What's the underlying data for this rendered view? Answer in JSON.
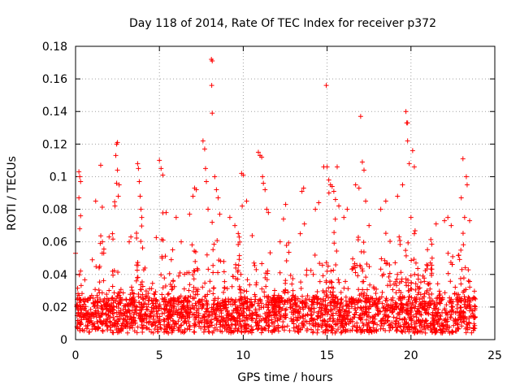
{
  "chart_data": {
    "type": "scatter",
    "title": "Day 118 of 2014, Rate Of TEC Index for receiver p372",
    "xlabel": "GPS time / hours",
    "ylabel": "ROTI / TECUs",
    "xlim": [
      0,
      25
    ],
    "ylim": [
      0,
      0.18
    ],
    "xticks": [
      0,
      5,
      10,
      15,
      20,
      25
    ],
    "xtick_labels": [
      "0",
      "5",
      "10",
      "15",
      "20",
      "25"
    ],
    "yticks": [
      0,
      0.02,
      0.04,
      0.06,
      0.08,
      0.1,
      0.12,
      0.14,
      0.16,
      0.18
    ],
    "ytick_labels": [
      "0",
      "0.02",
      "0.04",
      "0.06",
      "0.08",
      "0.1",
      "0.12",
      "0.14",
      "0.16",
      "0.18"
    ],
    "grid": true,
    "marker": "+",
    "color": "#ff0000",
    "series": [
      {
        "name": "ROTI",
        "points": [
          [
            0.0,
            0.053
          ],
          [
            0.2,
            0.103
          ],
          [
            0.25,
            0.1
          ],
          [
            0.3,
            0.097
          ],
          [
            0.2,
            0.087
          ],
          [
            0.3,
            0.076
          ],
          [
            0.25,
            0.068
          ],
          [
            1.0,
            0.049
          ],
          [
            1.2,
            0.085
          ],
          [
            1.5,
            0.107
          ],
          [
            1.6,
            0.06
          ],
          [
            2.0,
            0.063
          ],
          [
            2.2,
            0.065
          ],
          [
            2.35,
            0.082
          ],
          [
            2.45,
            0.096
          ],
          [
            2.5,
            0.104
          ],
          [
            2.4,
            0.113
          ],
          [
            2.45,
            0.12
          ],
          [
            2.5,
            0.121
          ],
          [
            2.6,
            0.095
          ],
          [
            2.55,
            0.088
          ],
          [
            3.2,
            0.06
          ],
          [
            3.3,
            0.063
          ],
          [
            3.7,
            0.108
          ],
          [
            3.75,
            0.105
          ],
          [
            3.8,
            0.097
          ],
          [
            3.85,
            0.088
          ],
          [
            3.9,
            0.08
          ],
          [
            3.95,
            0.075
          ],
          [
            5.0,
            0.11
          ],
          [
            5.1,
            0.105
          ],
          [
            5.2,
            0.101
          ],
          [
            5.4,
            0.078
          ],
          [
            6.0,
            0.075
          ],
          [
            6.3,
            0.06
          ],
          [
            6.8,
            0.077
          ],
          [
            7.0,
            0.088
          ],
          [
            7.1,
            0.093
          ],
          [
            7.2,
            0.092
          ],
          [
            7.6,
            0.122
          ],
          [
            7.7,
            0.117
          ],
          [
            7.75,
            0.105
          ],
          [
            7.8,
            0.097
          ],
          [
            7.9,
            0.08
          ],
          [
            8.1,
            0.172
          ],
          [
            8.15,
            0.171
          ],
          [
            8.12,
            0.156
          ],
          [
            8.15,
            0.139
          ],
          [
            8.3,
            0.1
          ],
          [
            8.4,
            0.092
          ],
          [
            8.5,
            0.087
          ],
          [
            8.6,
            0.077
          ],
          [
            9.2,
            0.075
          ],
          [
            9.5,
            0.07
          ],
          [
            9.9,
            0.102
          ],
          [
            10.0,
            0.101
          ],
          [
            10.2,
            0.085
          ],
          [
            10.9,
            0.115
          ],
          [
            11.0,
            0.113
          ],
          [
            11.1,
            0.112
          ],
          [
            11.15,
            0.1
          ],
          [
            11.2,
            0.096
          ],
          [
            11.3,
            0.092
          ],
          [
            11.4,
            0.08
          ],
          [
            11.5,
            0.078
          ],
          [
            12.4,
            0.074
          ],
          [
            12.2,
            0.06
          ],
          [
            13.5,
            0.091
          ],
          [
            13.6,
            0.093
          ],
          [
            13.4,
            0.065
          ],
          [
            14.3,
            0.08
          ],
          [
            14.5,
            0.084
          ],
          [
            14.8,
            0.106
          ],
          [
            14.95,
            0.156
          ],
          [
            15.0,
            0.106
          ],
          [
            15.1,
            0.098
          ],
          [
            15.2,
            0.095
          ],
          [
            15.3,
            0.094
          ],
          [
            15.4,
            0.091
          ],
          [
            15.5,
            0.086
          ],
          [
            15.6,
            0.106
          ],
          [
            15.7,
            0.082
          ],
          [
            16.0,
            0.075
          ],
          [
            16.2,
            0.08
          ],
          [
            16.7,
            0.095
          ],
          [
            16.9,
            0.093
          ],
          [
            17.0,
            0.137
          ],
          [
            17.1,
            0.109
          ],
          [
            17.2,
            0.104
          ],
          [
            17.3,
            0.085
          ],
          [
            17.5,
            0.07
          ],
          [
            18.2,
            0.08
          ],
          [
            18.5,
            0.085
          ],
          [
            19.2,
            0.088
          ],
          [
            19.5,
            0.095
          ],
          [
            19.7,
            0.14
          ],
          [
            19.75,
            0.133
          ],
          [
            19.8,
            0.133
          ],
          [
            19.8,
            0.122
          ],
          [
            19.9,
            0.108
          ],
          [
            20.1,
            0.116
          ],
          [
            20.2,
            0.106
          ],
          [
            20.0,
            0.075
          ],
          [
            20.2,
            0.065
          ],
          [
            21.5,
            0.071
          ],
          [
            22.0,
            0.073
          ],
          [
            22.2,
            0.075
          ],
          [
            22.4,
            0.07
          ],
          [
            23.0,
            0.087
          ],
          [
            23.1,
            0.111
          ],
          [
            23.3,
            0.1
          ],
          [
            23.35,
            0.095
          ],
          [
            23.2,
            0.075
          ],
          [
            23.5,
            0.073
          ]
        ]
      }
    ]
  }
}
